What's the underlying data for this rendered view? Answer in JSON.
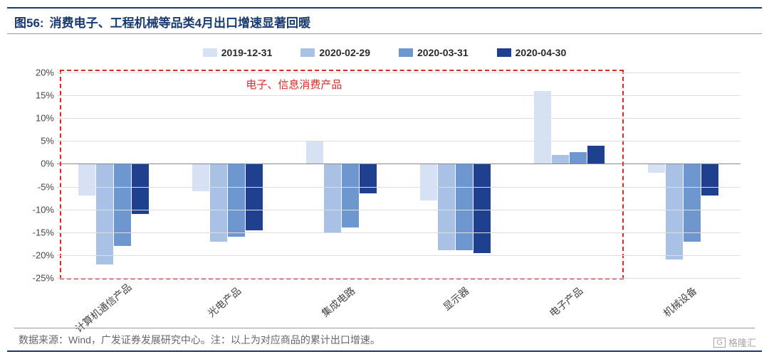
{
  "figure_number": "图56:",
  "title": "消费电子、工程机械等品类4月出口增速显著回暖",
  "chart": {
    "type": "bar",
    "ylim": [
      -25,
      20
    ],
    "ytick_step": 5,
    "y_format": "percent",
    "grid_color": "#dddddd",
    "zero_color": "#888888",
    "background_color": "#ffffff",
    "legend": [
      {
        "label": "2019-12-31",
        "color": "#d6e2f3"
      },
      {
        "label": "2020-02-29",
        "color": "#a8c1e5"
      },
      {
        "label": "2020-03-31",
        "color": "#6f97cf"
      },
      {
        "label": "2020-04-30",
        "color": "#1f3f8f"
      }
    ],
    "categories": [
      "计算机通信产品",
      "光电产品",
      "集成电路",
      "显示器",
      "电子产品",
      "机械设备"
    ],
    "series": [
      {
        "name": "2019-12-31",
        "color": "#d6e2f3",
        "values": [
          -7,
          -6,
          5,
          -8,
          16,
          -2
        ]
      },
      {
        "name": "2020-02-29",
        "color": "#a8c1e5",
        "values": [
          -22,
          -17,
          -15,
          -19,
          2,
          -21
        ]
      },
      {
        "name": "2020-03-31",
        "color": "#6f97cf",
        "values": [
          -18,
          -16,
          -14,
          -19,
          2.5,
          -17
        ]
      },
      {
        "name": "2020-04-30",
        "color": "#1f3f8f",
        "values": [
          -11,
          -14.5,
          -6.5,
          -19.5,
          4,
          -7
        ]
      }
    ],
    "bar_gap": 0.02,
    "group_width": 0.62,
    "label_fontsize": 14,
    "tick_fontsize": 13
  },
  "dashed_box": {
    "color": "#d42a2a",
    "covers_categories": [
      0,
      4
    ]
  },
  "annotation": {
    "text": "电子、信息消费产品",
    "color": "#d42a2a"
  },
  "source": "数据来源：Wind，广发证券发展研究中心。注：以上为对应商品的累计出口增速。",
  "watermark": "格隆汇"
}
